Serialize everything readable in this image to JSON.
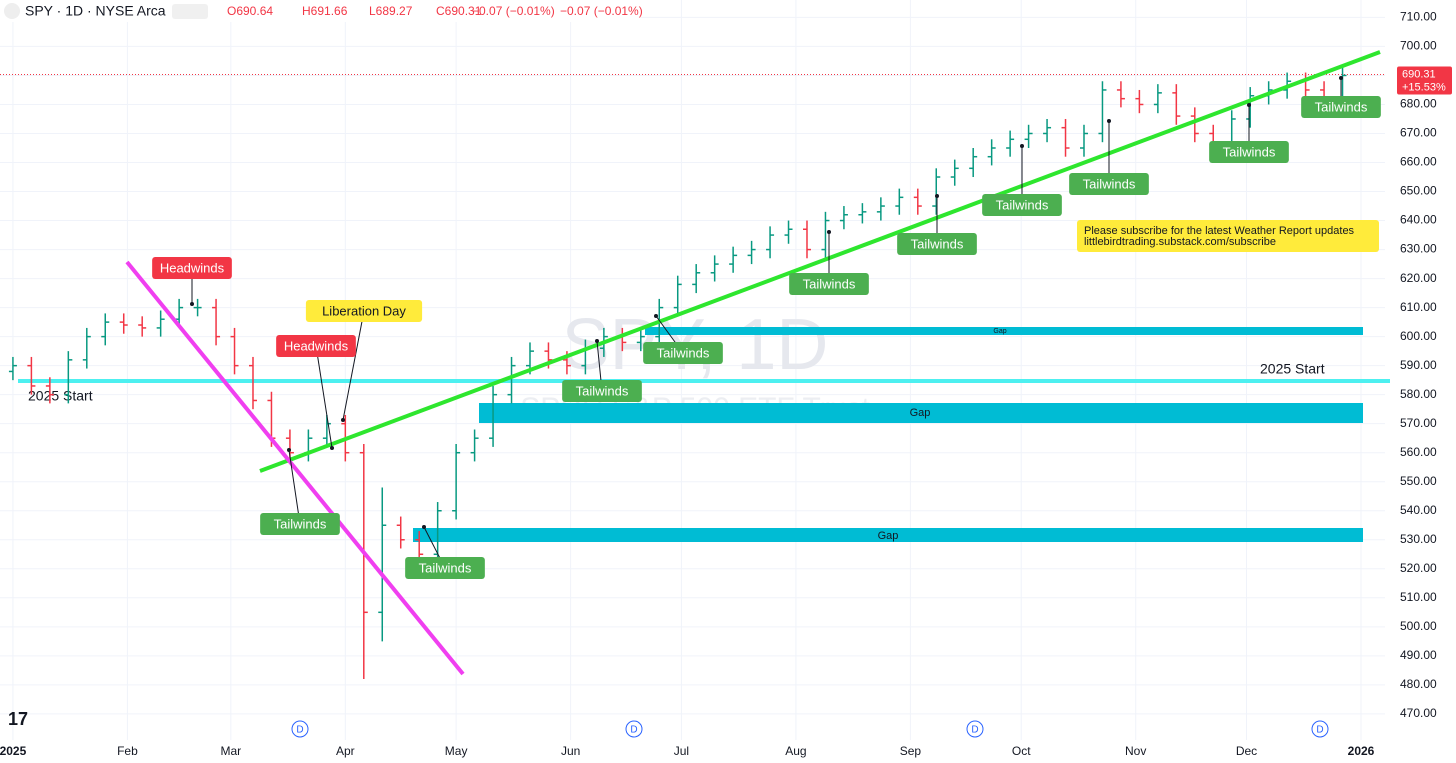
{
  "header": {
    "symbol": "SPY · 1D · NYSE Arca",
    "open": "O690.64",
    "high": "H691.66",
    "low": "L689.27",
    "close": "C690.31",
    "change": "−0.07 (−0.01%)",
    "change2": "−0.07 (−0.01%)"
  },
  "watermark": {
    "title": "SPY, 1D",
    "subtitle": "SPDR S&P 500 ETF Trust"
  },
  "annotations": [
    "Headwinds",
    "Liberation Day",
    "Headwinds",
    "Tailwinds",
    "Tailwinds",
    "Tailwinds",
    "Tailwinds",
    "Tailwinds",
    "Tailwinds",
    "Tailwinds",
    "Tailwinds",
    "Tailwinds",
    "Tailwinds"
  ],
  "gaps": [
    "Gap",
    "Gap",
    "Gap"
  ],
  "level_labels": [
    "2025 Start",
    "2025 Start"
  ],
  "note": [
    "Please subscribe for the latest Weather Report updates",
    "littlebirdtrading.substack.com/subscribe"
  ],
  "dividends": [
    "D",
    "D",
    "D",
    "D"
  ],
  "chart_data": {
    "type": "ohlc",
    "x": [
      0,
      5,
      10,
      15,
      20,
      25,
      30,
      35,
      40,
      45,
      50,
      55,
      60,
      65,
      70,
      75,
      80,
      85,
      90,
      95,
      100,
      105,
      110,
      115,
      120,
      125,
      130,
      135,
      140,
      145,
      150,
      155,
      160,
      165,
      170,
      175,
      180,
      185,
      190,
      195,
      200,
      205,
      210,
      215,
      220,
      225,
      230,
      235,
      240,
      245,
      250,
      255,
      260,
      265,
      270,
      275,
      280,
      285,
      290,
      295,
      300,
      305,
      310,
      315,
      320,
      325,
      330,
      335,
      340,
      345,
      350,
      355,
      360
    ],
    "open": [
      588,
      590,
      583,
      580,
      592,
      600,
      605,
      604,
      603,
      606,
      610,
      610,
      600,
      590,
      578,
      565,
      560,
      565,
      570,
      560,
      505,
      535,
      530,
      525,
      540,
      560,
      565,
      580,
      590,
      595,
      592,
      590,
      596,
      600,
      598,
      600,
      610,
      618,
      622,
      625,
      628,
      630,
      635,
      637,
      630,
      640,
      642,
      643,
      645,
      648,
      645,
      655,
      658,
      662,
      665,
      668,
      670,
      672,
      665,
      670,
      685,
      682,
      680,
      684,
      676,
      670,
      665,
      675,
      683,
      685,
      688,
      685,
      682
    ],
    "high": [
      593,
      593,
      586,
      595,
      603,
      608,
      608,
      607,
      609,
      613,
      613,
      613,
      603,
      593,
      581,
      568,
      568,
      573,
      573,
      563,
      548,
      538,
      533,
      543,
      563,
      568,
      583,
      593,
      598,
      598,
      595,
      599,
      603,
      603,
      603,
      613,
      621,
      625,
      628,
      631,
      633,
      638,
      640,
      640,
      643,
      645,
      646,
      648,
      651,
      651,
      658,
      661,
      665,
      668,
      671,
      673,
      675,
      675,
      673,
      688,
      688,
      685,
      687,
      687,
      679,
      673,
      678,
      686,
      688,
      691,
      691,
      688,
      693
    ],
    "low": [
      585,
      580,
      577,
      577,
      589,
      597,
      601,
      600,
      600,
      603,
      607,
      597,
      587,
      575,
      562,
      557,
      557,
      562,
      557,
      482,
      495,
      527,
      522,
      522,
      537,
      557,
      562,
      577,
      587,
      589,
      587,
      587,
      593,
      595,
      595,
      597,
      607,
      615,
      619,
      622,
      625,
      627,
      632,
      627,
      627,
      637,
      639,
      640,
      642,
      642,
      642,
      652,
      655,
      659,
      662,
      665,
      667,
      662,
      662,
      667,
      679,
      677,
      677,
      673,
      667,
      662,
      662,
      672,
      680,
      682,
      682,
      679,
      679
    ],
    "close": [
      590,
      583,
      580,
      592,
      600,
      605,
      604,
      603,
      606,
      610,
      610,
      600,
      590,
      578,
      565,
      560,
      565,
      570,
      560,
      505,
      535,
      530,
      525,
      540,
      560,
      565,
      580,
      590,
      595,
      592,
      590,
      596,
      600,
      598,
      600,
      610,
      618,
      622,
      625,
      628,
      630,
      635,
      637,
      630,
      640,
      642,
      643,
      645,
      648,
      645,
      655,
      658,
      662,
      665,
      668,
      670,
      672,
      665,
      670,
      685,
      682,
      680,
      684,
      676,
      670,
      665,
      675,
      683,
      685,
      688,
      685,
      682,
      690
    ],
    "xlim": [
      -3.5,
      371.5
    ],
    "xticks": [
      {
        "value": 0,
        "label": "2025"
      },
      {
        "value": 31,
        "label": "Feb"
      },
      {
        "value": 59,
        "label": "Mar"
      },
      {
        "value": 90,
        "label": "Apr"
      },
      {
        "value": 120,
        "label": "May"
      },
      {
        "value": 151,
        "label": "Jun"
      },
      {
        "value": 181,
        "label": "Jul"
      },
      {
        "value": 212,
        "label": "Aug"
      },
      {
        "value": 243,
        "label": "Sep"
      },
      {
        "value": 273,
        "label": "Oct"
      },
      {
        "value": 304,
        "label": "Nov"
      },
      {
        "value": 334,
        "label": "Dec"
      },
      {
        "value": 365,
        "label": "2026"
      }
    ],
    "ylim": [
      461,
      716
    ],
    "yticks": [
      {
        "value": 470,
        "label": "470.00"
      },
      {
        "value": 480,
        "label": "480.00"
      },
      {
        "value": 490,
        "label": "490.00"
      },
      {
        "value": 500,
        "label": "500.00"
      },
      {
        "value": 510,
        "label": "510.00"
      },
      {
        "value": 520,
        "label": "520.00"
      },
      {
        "value": 530,
        "label": "530.00"
      },
      {
        "value": 540,
        "label": "540.00"
      },
      {
        "value": 550,
        "label": "550.00"
      },
      {
        "value": 560,
        "label": "560.00"
      },
      {
        "value": 570,
        "label": "570.00"
      },
      {
        "value": 580,
        "label": "580.00"
      },
      {
        "value": 590,
        "label": "590.00"
      },
      {
        "value": 600,
        "label": "600.00"
      },
      {
        "value": 610,
        "label": "610.00"
      },
      {
        "value": 620,
        "label": "620.00"
      },
      {
        "value": 630,
        "label": "630.00"
      },
      {
        "value": 640,
        "label": "640.00"
      },
      {
        "value": 650,
        "label": "650.00"
      },
      {
        "value": 660,
        "label": "660.00"
      },
      {
        "value": 670,
        "label": "670.00"
      },
      {
        "value": 680,
        "label": "680.00"
      },
      {
        "value": 690,
        "label": "690.00"
      },
      {
        "value": 700,
        "label": "700.00"
      },
      {
        "value": 710,
        "label": "710.00"
      }
    ],
    "last_price": {
      "value": 690.31,
      "label": "690.31"
    },
    "change_label": "+15.53%",
    "up_color": "#089981",
    "down_color": "#f23645",
    "grid": true
  }
}
